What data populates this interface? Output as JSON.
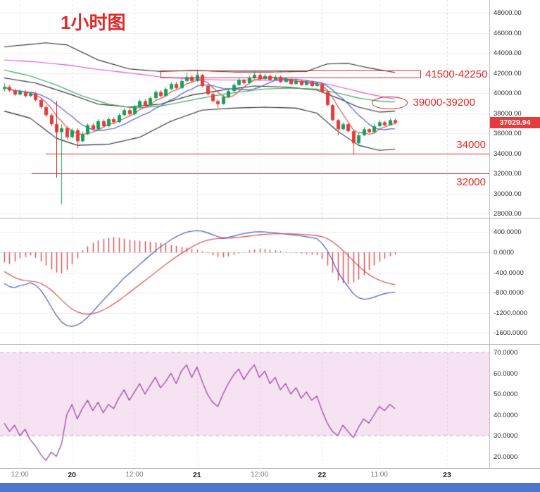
{
  "app": {
    "title": "1小时图"
  },
  "colors": {
    "candle_up": "#17a05c",
    "candle_down": "#e23c3c",
    "annotation": "#e02a2a",
    "badge_bg": "#e23c3c",
    "macd_hist": "#e03b3b",
    "osc_band": "#f6e2f3",
    "osc_line": "#9a4f9e",
    "bottom_bar": "#4b76cc"
  },
  "price_panel": {
    "axis": {
      "name": "price-axis",
      "values": [
        48000,
        46000,
        44000,
        42000,
        40000,
        38000,
        36000,
        34000,
        32000,
        30000,
        28000
      ],
      "labels": [
        "48000.00",
        "46000.00",
        "44000.00",
        "42000.00",
        "40000.00",
        "38000.00",
        "36000.00",
        "34000.00",
        "32000.00",
        "30000.00",
        "28000.00"
      ]
    },
    "current_price": {
      "value": 37029.94,
      "label": "37029.94"
    },
    "annotations": {
      "resistance_zone": {
        "label": "41500-42250",
        "price_top": 42250,
        "price_bottom": 41500,
        "from_index": 30,
        "to_index": 80
      },
      "pivot_zone": {
        "label": "39000-39200",
        "center_index": 74,
        "center_price": 39000,
        "rx_candles": 3.5,
        "ry_price": 620
      },
      "support_line_1": {
        "label": "34000",
        "price": 34000,
        "from_index": 8
      },
      "support_line_2": {
        "label": "32000",
        "price": 32000,
        "from_index": 5.3
      },
      "vertical_line": {
        "index": 10,
        "price_from": 39200,
        "price_to": 31600
      }
    }
  },
  "macd_panel": {
    "axis": {
      "name": "macd-axis",
      "values": [
        400,
        0,
        -400,
        -800,
        -1200,
        -1600
      ],
      "labels": [
        "400.0000",
        "0.0000",
        "-400.0000",
        "-800.0000",
        "-1200.0000",
        "-1600.0000"
      ]
    }
  },
  "osc_panel": {
    "axis": {
      "name": "oscillator-axis",
      "values": [
        70,
        60,
        50,
        40,
        30,
        20
      ],
      "labels": [
        "70.0000",
        "60.0000",
        "50.0000",
        "40.0000",
        "30.0000",
        "20.0000"
      ]
    },
    "band": {
      "upper": 70,
      "lower": 30
    }
  },
  "time_axis": {
    "ticks": [
      {
        "text": "12:00",
        "index": 3,
        "major": false
      },
      {
        "text": "20",
        "index": 13,
        "major": true
      },
      {
        "text": "12:00",
        "index": 25,
        "major": false
      },
      {
        "text": "21",
        "index": 37,
        "major": true
      },
      {
        "text": "12:00",
        "index": 49,
        "major": false
      },
      {
        "text": "22",
        "index": 61,
        "major": true
      },
      {
        "text": "11:00",
        "index": 72,
        "major": false
      },
      {
        "text": "23",
        "index": 85,
        "major": true
      }
    ]
  },
  "chart_data": [
    {
      "type": "candlestick",
      "panel": "price",
      "timeframe": "1h",
      "open": [
        40400,
        40600,
        40250,
        39850,
        40150,
        39700,
        39950,
        39300,
        38600,
        37800,
        36900,
        36100,
        36500,
        35600,
        36300,
        35200,
        35900,
        36800,
        36400,
        37200,
        36700,
        37400,
        37100,
        37800,
        38300,
        37900,
        38600,
        39200,
        38800,
        39500,
        40100,
        39700,
        40400,
        40900,
        40500,
        41200,
        41600,
        41200,
        41800,
        40700,
        39900,
        39200,
        38900,
        39600,
        40200,
        40800,
        41300,
        41000,
        41500,
        41800,
        41400,
        41700,
        41300,
        41600,
        41100,
        41400,
        40900,
        41200,
        40800,
        41100,
        40700,
        40900,
        40100,
        38800,
        37300,
        36400,
        36900,
        36200,
        35000,
        35800,
        36400,
        36100,
        36700,
        37100,
        36800,
        37300
      ],
      "high": [
        41000,
        40800,
        40450,
        40350,
        40300,
        40150,
        40100,
        39500,
        38800,
        38000,
        37100,
        36900,
        36700,
        36500,
        36500,
        36100,
        37000,
        37000,
        37400,
        37400,
        37600,
        37600,
        38000,
        38500,
        38500,
        38800,
        39400,
        39400,
        39700,
        40300,
        40300,
        40600,
        41100,
        41100,
        41400,
        42000,
        41800,
        42300,
        41900,
        40900,
        40100,
        39400,
        39800,
        40400,
        41000,
        41500,
        41400,
        41700,
        42250,
        41950,
        41900,
        41850,
        41800,
        41750,
        41600,
        41500,
        41400,
        41350,
        41300,
        41250,
        41100,
        41000,
        40200,
        38900,
        37400,
        37100,
        37000,
        36300,
        36000,
        36600,
        36500,
        36900,
        37300,
        37250,
        37500,
        37450
      ],
      "low": [
        40150,
        40100,
        39700,
        39750,
        39550,
        39600,
        39150,
        38450,
        37600,
        36700,
        35900,
        28900,
        35400,
        35500,
        34500,
        35100,
        35800,
        36250,
        36300,
        36550,
        36600,
        36950,
        37000,
        37700,
        37750,
        37800,
        38500,
        38650,
        38700,
        39400,
        39550,
        39650,
        40300,
        40350,
        40400,
        41100,
        41050,
        41100,
        40550,
        39750,
        39050,
        38500,
        38850,
        39500,
        40100,
        40700,
        40850,
        40900,
        41350,
        41250,
        41350,
        41200,
        41250,
        41000,
        41050,
        40800,
        40850,
        40700,
        40750,
        40600,
        40650,
        40000,
        38700,
        37200,
        35800,
        36300,
        36100,
        33900,
        34900,
        35700,
        36000,
        36050,
        36650,
        36700,
        36750,
        36900
      ],
      "close": [
        40600,
        40250,
        39850,
        40150,
        39700,
        39950,
        39300,
        38600,
        37800,
        36900,
        36100,
        36500,
        35600,
        36300,
        35200,
        35900,
        36800,
        36400,
        37200,
        36700,
        37400,
        37100,
        37800,
        38300,
        37900,
        38600,
        39200,
        38800,
        39500,
        40100,
        39700,
        40400,
        40900,
        40500,
        41200,
        41600,
        41200,
        41800,
        40700,
        39900,
        39200,
        38900,
        39600,
        40200,
        40800,
        41300,
        41000,
        41500,
        41800,
        41400,
        41700,
        41300,
        41600,
        41100,
        41400,
        40900,
        41200,
        40800,
        41100,
        40700,
        40900,
        40100,
        38800,
        37300,
        36400,
        36900,
        36200,
        35000,
        35800,
        36400,
        36100,
        36700,
        37100,
        36800,
        37300,
        37029.94
      ],
      "overlays": [
        {
          "name": "boll-upper",
          "color": "#2b2b2b",
          "points": [
            [
              0,
              44600
            ],
            [
              8,
              45000
            ],
            [
              12,
              44800
            ],
            [
              18,
              43300
            ],
            [
              24,
              42400
            ],
            [
              30,
              42150
            ],
            [
              37,
              42250
            ],
            [
              44,
              42100
            ],
            [
              51,
              42100
            ],
            [
              58,
              42150
            ],
            [
              62,
              42900
            ],
            [
              66,
              42950
            ],
            [
              70,
              42500
            ],
            [
              75,
              42050
            ]
          ]
        },
        {
          "name": "boll-mid",
          "color": "#2b2b2b",
          "points": [
            [
              0,
              41500
            ],
            [
              6,
              41000
            ],
            [
              12,
              40000
            ],
            [
              18,
              38900
            ],
            [
              24,
              38600
            ],
            [
              30,
              38900
            ],
            [
              36,
              39800
            ],
            [
              42,
              40300
            ],
            [
              48,
              40700
            ],
            [
              54,
              40600
            ],
            [
              60,
              40300
            ],
            [
              64,
              39500
            ],
            [
              68,
              38600
            ],
            [
              72,
              38100
            ],
            [
              75,
              38200
            ]
          ]
        },
        {
          "name": "boll-lower",
          "color": "#2b2b2b",
          "points": [
            [
              0,
              38200
            ],
            [
              5,
              37500
            ],
            [
              10,
              35500
            ],
            [
              14,
              34800
            ],
            [
              20,
              34900
            ],
            [
              26,
              35600
            ],
            [
              32,
              37200
            ],
            [
              38,
              38300
            ],
            [
              44,
              38500
            ],
            [
              50,
              38600
            ],
            [
              56,
              38500
            ],
            [
              60,
              38000
            ],
            [
              64,
              36200
            ],
            [
              68,
              34800
            ],
            [
              72,
              34300
            ],
            [
              75,
              34400
            ]
          ]
        },
        {
          "name": "ma-slow",
          "color": "#e14fd4",
          "points": [
            [
              0,
              43300
            ],
            [
              6,
              43100
            ],
            [
              12,
              42800
            ],
            [
              18,
              42350
            ],
            [
              24,
              42000
            ],
            [
              30,
              41600
            ],
            [
              36,
              41400
            ],
            [
              42,
              41300
            ],
            [
              48,
              41300
            ],
            [
              54,
              41250
            ],
            [
              58,
              41150
            ],
            [
              62,
              40900
            ],
            [
              66,
              40400
            ],
            [
              70,
              39900
            ],
            [
              75,
              39400
            ]
          ]
        },
        {
          "name": "ma-mid",
          "color": "#2fa54c",
          "points": [
            [
              0,
              42300
            ],
            [
              5,
              41700
            ],
            [
              10,
              40800
            ],
            [
              15,
              39700
            ],
            [
              20,
              38900
            ],
            [
              25,
              38500
            ],
            [
              30,
              38700
            ],
            [
              35,
              39200
            ],
            [
              40,
              39700
            ],
            [
              45,
              40100
            ],
            [
              50,
              40400
            ],
            [
              55,
              40500
            ],
            [
              60,
              40400
            ],
            [
              64,
              40000
            ],
            [
              68,
              39500
            ],
            [
              72,
              39200
            ],
            [
              75,
              39100
            ]
          ]
        }
      ],
      "derived_overlays": [
        {
          "name": "ma-fast",
          "color": "#d94343",
          "window": 5
        },
        {
          "name": "ma-10",
          "color": "#4053c8",
          "window": 10
        }
      ]
    },
    {
      "type": "bar",
      "panel": "macd",
      "name": "MACD",
      "histogram": [
        -200,
        -230,
        -180,
        -120,
        -90,
        -60,
        -110,
        -180,
        -260,
        -340,
        -400,
        -420,
        -350,
        -240,
        -120,
        40,
        120,
        190,
        240,
        270,
        290,
        300,
        290,
        270,
        250,
        240,
        230,
        220,
        210,
        200,
        185,
        170,
        150,
        130,
        110,
        90,
        70,
        50,
        20,
        -20,
        -60,
        -90,
        -100,
        -80,
        -50,
        -20,
        10,
        40,
        60,
        70,
        65,
        55,
        40,
        25,
        10,
        -5,
        -15,
        -25,
        -35,
        -45,
        -55,
        -130,
        -260,
        -400,
        -560,
        -610,
        -625,
        -600,
        -540,
        -450,
        -350,
        -260,
        -185,
        -125,
        -75,
        -40
      ],
      "lines": [
        {
          "name": "DIF",
          "color": "#3a4fc1",
          "values": [
            -620,
            -680,
            -700,
            -660,
            -640,
            -600,
            -650,
            -750,
            -900,
            -1080,
            -1250,
            -1380,
            -1450,
            -1470,
            -1440,
            -1380,
            -1290,
            -1180,
            -1060,
            -950,
            -840,
            -730,
            -620,
            -510,
            -420,
            -330,
            -240,
            -150,
            -60,
            30,
            110,
            180,
            250,
            310,
            360,
            400,
            420,
            430,
            420,
            390,
            350,
            310,
            290,
            300,
            320,
            350,
            370,
            390,
            405,
            410,
            405,
            395,
            385,
            375,
            365,
            350,
            340,
            325,
            310,
            290,
            270,
            180,
            40,
            -160,
            -380,
            -540,
            -680,
            -820,
            -900,
            -930,
            -920,
            -890,
            -850,
            -820,
            -800,
            -790
          ]
        },
        {
          "name": "DEA",
          "color": "#d34040",
          "values": [
            -380,
            -440,
            -500,
            -540,
            -560,
            -570,
            -585,
            -615,
            -670,
            -745,
            -840,
            -945,
            -1040,
            -1125,
            -1180,
            -1215,
            -1225,
            -1215,
            -1190,
            -1145,
            -1090,
            -1025,
            -955,
            -880,
            -800,
            -720,
            -640,
            -560,
            -480,
            -400,
            -320,
            -240,
            -165,
            -90,
            -20,
            45,
            105,
            160,
            205,
            240,
            262,
            272,
            275,
            280,
            288,
            298,
            310,
            323,
            336,
            348,
            357,
            363,
            367,
            368,
            368,
            366,
            362,
            357,
            350,
            341,
            330,
            310,
            272,
            212,
            130,
            38,
            -62,
            -168,
            -270,
            -362,
            -440,
            -503,
            -552,
            -590,
            -620,
            -645
          ]
        }
      ]
    },
    {
      "type": "line",
      "panel": "oscillator",
      "name": "oscillator",
      "color": "#9a4f9e",
      "values": [
        36,
        32,
        35,
        30,
        33,
        28,
        25,
        21,
        18,
        22,
        20,
        26,
        40,
        45,
        38,
        43,
        47,
        42,
        46,
        41,
        45,
        43,
        48,
        52,
        47,
        51,
        55,
        50,
        54,
        58,
        53,
        56,
        60,
        55,
        61,
        64,
        58,
        63,
        56,
        50,
        46,
        44,
        50,
        55,
        59,
        62,
        57,
        61,
        64,
        58,
        61,
        55,
        58,
        52,
        55,
        50,
        53,
        48,
        51,
        47,
        49,
        42,
        36,
        32,
        30,
        35,
        32,
        29,
        34,
        38,
        36,
        40,
        44,
        42,
        45,
        43
      ]
    }
  ]
}
